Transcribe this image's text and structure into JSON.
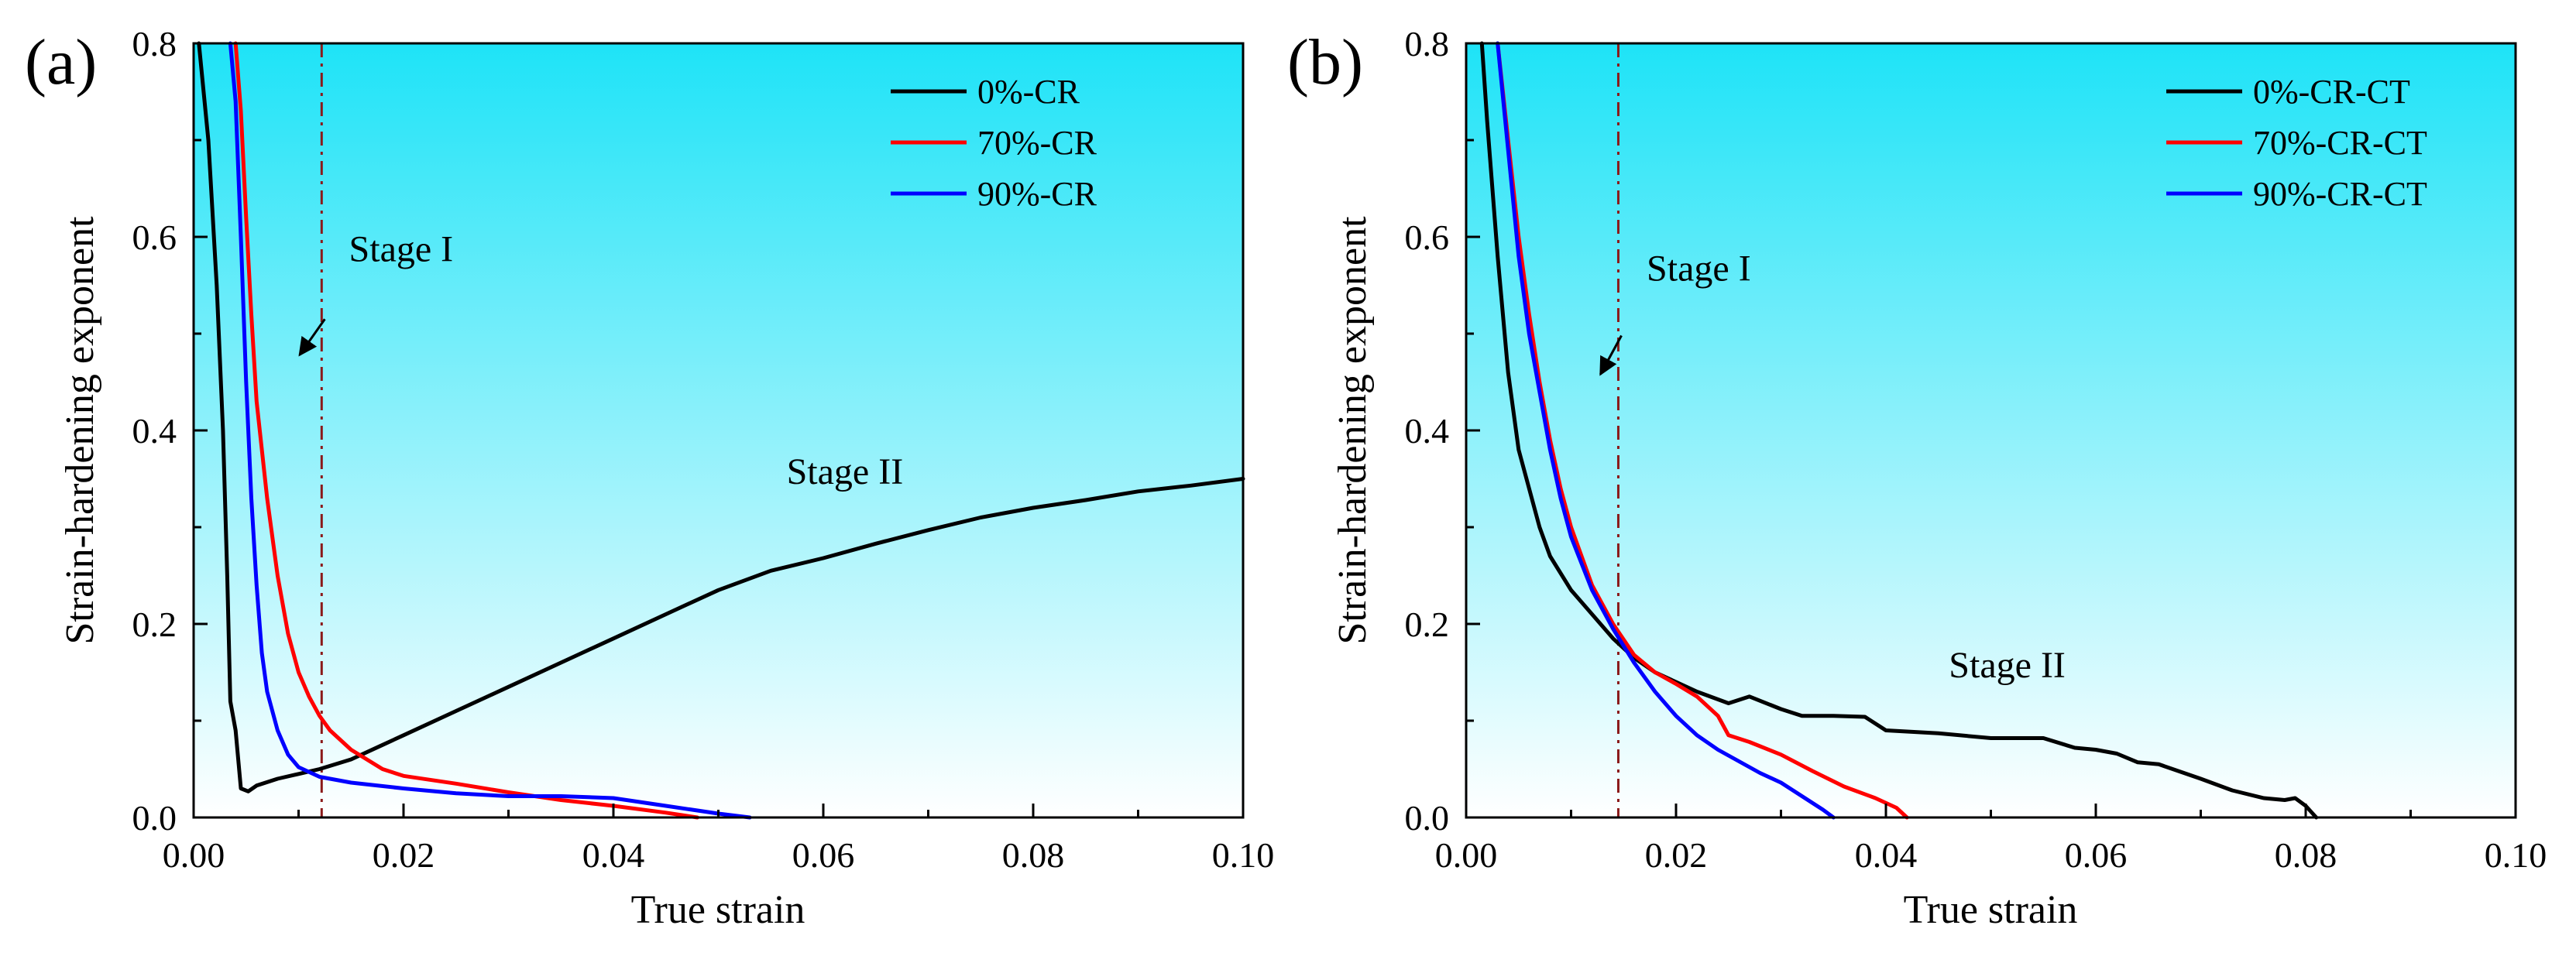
{
  "chart_data": [
    {
      "type": "line",
      "panel_label": "(a)",
      "xlabel": "True strain",
      "ylabel": "Strain-hardening exponent",
      "xlim": [
        0,
        0.1
      ],
      "ylim": [
        0,
        0.8
      ],
      "xticks": [
        "0.00",
        "0.02",
        "0.04",
        "0.06",
        "0.08",
        "0.10"
      ],
      "yticks": [
        "0.0",
        "0.2",
        "0.4",
        "0.6",
        "0.8"
      ],
      "legend_position": "top-right",
      "stage_boundary_x": 0.0122,
      "annotations": {
        "stage1": "Stage I",
        "stage2": "Stage II"
      },
      "annotation_positions": {
        "stage1_text": [
          0.0148,
          0.575
        ],
        "stage1_arrow_from": [
          0.0125,
          0.515
        ],
        "stage1_arrow_to": [
          0.0101,
          0.478
        ],
        "stage2_text": [
          0.0565,
          0.345
        ]
      },
      "series": [
        {
          "name": "0%-CR",
          "color": "#000000",
          "points": [
            [
              0.0005,
              0.8
            ],
            [
              0.0014,
              0.7
            ],
            [
              0.0022,
              0.55
            ],
            [
              0.0028,
              0.4
            ],
            [
              0.0032,
              0.25
            ],
            [
              0.0035,
              0.12
            ],
            [
              0.004,
              0.09
            ],
            [
              0.0045,
              0.03
            ],
            [
              0.0052,
              0.027
            ],
            [
              0.006,
              0.033
            ],
            [
              0.008,
              0.04
            ],
            [
              0.01,
              0.045
            ],
            [
              0.012,
              0.05
            ],
            [
              0.015,
              0.06
            ],
            [
              0.018,
              0.075
            ],
            [
              0.02,
              0.085
            ],
            [
              0.025,
              0.11
            ],
            [
              0.03,
              0.135
            ],
            [
              0.035,
              0.16
            ],
            [
              0.04,
              0.185
            ],
            [
              0.045,
              0.21
            ],
            [
              0.05,
              0.235
            ],
            [
              0.055,
              0.255
            ],
            [
              0.06,
              0.268
            ],
            [
              0.065,
              0.283
            ],
            [
              0.07,
              0.297
            ],
            [
              0.075,
              0.31
            ],
            [
              0.08,
              0.32
            ],
            [
              0.085,
              0.328
            ],
            [
              0.09,
              0.337
            ],
            [
              0.095,
              0.343
            ],
            [
              0.1,
              0.35
            ]
          ]
        },
        {
          "name": "70%-CR",
          "color": "#ff0000",
          "points": [
            [
              0.004,
              0.8
            ],
            [
              0.0045,
              0.73
            ],
            [
              0.005,
              0.62
            ],
            [
              0.0055,
              0.52
            ],
            [
              0.006,
              0.43
            ],
            [
              0.007,
              0.33
            ],
            [
              0.008,
              0.25
            ],
            [
              0.009,
              0.19
            ],
            [
              0.01,
              0.15
            ],
            [
              0.011,
              0.125
            ],
            [
              0.012,
              0.105
            ],
            [
              0.013,
              0.09
            ],
            [
              0.015,
              0.07
            ],
            [
              0.018,
              0.05
            ],
            [
              0.02,
              0.043
            ],
            [
              0.025,
              0.035
            ],
            [
              0.03,
              0.026
            ],
            [
              0.035,
              0.018
            ],
            [
              0.04,
              0.012
            ],
            [
              0.045,
              0.005
            ],
            [
              0.048,
              0.0
            ]
          ]
        },
        {
          "name": "90%-CR",
          "color": "#0000ff",
          "points": [
            [
              0.0035,
              0.8
            ],
            [
              0.004,
              0.74
            ],
            [
              0.0045,
              0.6
            ],
            [
              0.005,
              0.45
            ],
            [
              0.0055,
              0.33
            ],
            [
              0.006,
              0.24
            ],
            [
              0.0065,
              0.17
            ],
            [
              0.007,
              0.13
            ],
            [
              0.008,
              0.09
            ],
            [
              0.009,
              0.065
            ],
            [
              0.01,
              0.052
            ],
            [
              0.012,
              0.042
            ],
            [
              0.015,
              0.036
            ],
            [
              0.02,
              0.03
            ],
            [
              0.025,
              0.025
            ],
            [
              0.03,
              0.022
            ],
            [
              0.035,
              0.022
            ],
            [
              0.04,
              0.02
            ],
            [
              0.045,
              0.012
            ],
            [
              0.05,
              0.004
            ],
            [
              0.053,
              0.0
            ]
          ]
        }
      ]
    },
    {
      "type": "line",
      "panel_label": "(b)",
      "xlabel": "True strain",
      "ylabel": "Strain-hardening exponent",
      "xlim": [
        0,
        0.1
      ],
      "ylim": [
        0,
        0.8
      ],
      "xticks": [
        "0.00",
        "0.02",
        "0.04",
        "0.06",
        "0.08",
        "0.10"
      ],
      "yticks": [
        "0.0",
        "0.2",
        "0.4",
        "0.6",
        "0.8"
      ],
      "legend_position": "top-right",
      "stage_boundary_x": 0.0145,
      "annotations": {
        "stage1": "Stage I",
        "stage2": "Stage II"
      },
      "annotation_positions": {
        "stage1_text": [
          0.0172,
          0.555
        ],
        "stage1_arrow_from": [
          0.0148,
          0.498
        ],
        "stage1_arrow_to": [
          0.0128,
          0.458
        ],
        "stage2_text": [
          0.046,
          0.145
        ]
      },
      "series": [
        {
          "name": "0%-CR-CT",
          "color": "#000000",
          "points": [
            [
              0.0015,
              0.8
            ],
            [
              0.002,
              0.72
            ],
            [
              0.003,
              0.58
            ],
            [
              0.004,
              0.46
            ],
            [
              0.005,
              0.38
            ],
            [
              0.006,
              0.34
            ],
            [
              0.007,
              0.3
            ],
            [
              0.008,
              0.27
            ],
            [
              0.01,
              0.235
            ],
            [
              0.012,
              0.21
            ],
            [
              0.014,
              0.185
            ],
            [
              0.016,
              0.165
            ],
            [
              0.018,
              0.15
            ],
            [
              0.02,
              0.14
            ],
            [
              0.022,
              0.13
            ],
            [
              0.025,
              0.118
            ],
            [
              0.027,
              0.125
            ],
            [
              0.03,
              0.112
            ],
            [
              0.032,
              0.105
            ],
            [
              0.035,
              0.105
            ],
            [
              0.038,
              0.104
            ],
            [
              0.04,
              0.09
            ],
            [
              0.045,
              0.087
            ],
            [
              0.05,
              0.082
            ],
            [
              0.055,
              0.082
            ],
            [
              0.058,
              0.072
            ],
            [
              0.06,
              0.07
            ],
            [
              0.062,
              0.066
            ],
            [
              0.064,
              0.057
            ],
            [
              0.066,
              0.055
            ],
            [
              0.07,
              0.04
            ],
            [
              0.073,
              0.028
            ],
            [
              0.076,
              0.02
            ],
            [
              0.078,
              0.018
            ],
            [
              0.079,
              0.02
            ],
            [
              0.08,
              0.012
            ],
            [
              0.081,
              0.0
            ]
          ]
        },
        {
          "name": "70%-CR-CT",
          "color": "#ff0000",
          "points": [
            [
              0.003,
              0.8
            ],
            [
              0.004,
              0.7
            ],
            [
              0.005,
              0.6
            ],
            [
              0.006,
              0.52
            ],
            [
              0.007,
              0.45
            ],
            [
              0.008,
              0.39
            ],
            [
              0.009,
              0.34
            ],
            [
              0.01,
              0.3
            ],
            [
              0.012,
              0.24
            ],
            [
              0.014,
              0.2
            ],
            [
              0.016,
              0.168
            ],
            [
              0.018,
              0.15
            ],
            [
              0.02,
              0.138
            ],
            [
              0.022,
              0.125
            ],
            [
              0.024,
              0.105
            ],
            [
              0.025,
              0.085
            ],
            [
              0.027,
              0.078
            ],
            [
              0.03,
              0.065
            ],
            [
              0.033,
              0.048
            ],
            [
              0.036,
              0.032
            ],
            [
              0.039,
              0.02
            ],
            [
              0.041,
              0.01
            ],
            [
              0.042,
              0.0
            ]
          ]
        },
        {
          "name": "90%-CR-CT",
          "color": "#0000ff",
          "points": [
            [
              0.003,
              0.8
            ],
            [
              0.004,
              0.69
            ],
            [
              0.005,
              0.58
            ],
            [
              0.006,
              0.5
            ],
            [
              0.007,
              0.44
            ],
            [
              0.008,
              0.38
            ],
            [
              0.009,
              0.33
            ],
            [
              0.01,
              0.29
            ],
            [
              0.012,
              0.235
            ],
            [
              0.014,
              0.195
            ],
            [
              0.016,
              0.16
            ],
            [
              0.018,
              0.13
            ],
            [
              0.02,
              0.105
            ],
            [
              0.022,
              0.085
            ],
            [
              0.024,
              0.07
            ],
            [
              0.026,
              0.058
            ],
            [
              0.028,
              0.046
            ],
            [
              0.03,
              0.036
            ],
            [
              0.032,
              0.022
            ],
            [
              0.034,
              0.008
            ],
            [
              0.035,
              0.0
            ]
          ]
        }
      ]
    }
  ]
}
